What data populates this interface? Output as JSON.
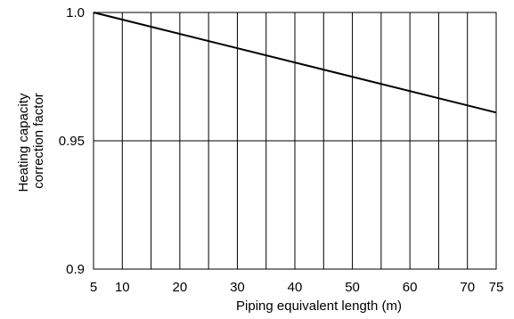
{
  "chart_data": {
    "type": "line",
    "title": "",
    "xlabel": "Piping equivalent length (m)",
    "ylabel_lines": [
      "Heating capacity",
      "correction factor"
    ],
    "xlim": [
      5,
      75
    ],
    "ylim": [
      0.9,
      1.0
    ],
    "x_ticks": [
      5,
      10,
      20,
      30,
      40,
      50,
      60,
      70,
      75
    ],
    "x_tick_labels": [
      "5",
      "10",
      "20",
      "30",
      "40",
      "50",
      "60",
      "70",
      "75"
    ],
    "x_gridlines": [
      10,
      15,
      20,
      25,
      30,
      35,
      40,
      45,
      50,
      55,
      60,
      65,
      70
    ],
    "y_ticks": [
      0.9,
      0.95,
      1.0
    ],
    "y_tick_labels": [
      "0.9",
      "0.95",
      "1.0"
    ],
    "grid": true,
    "series": [
      {
        "x": [
          5,
          75
        ],
        "values": [
          1.0,
          0.961
        ]
      }
    ],
    "colors": {
      "line": "#000000",
      "grid": "#000000",
      "background": "#ffffff"
    }
  }
}
